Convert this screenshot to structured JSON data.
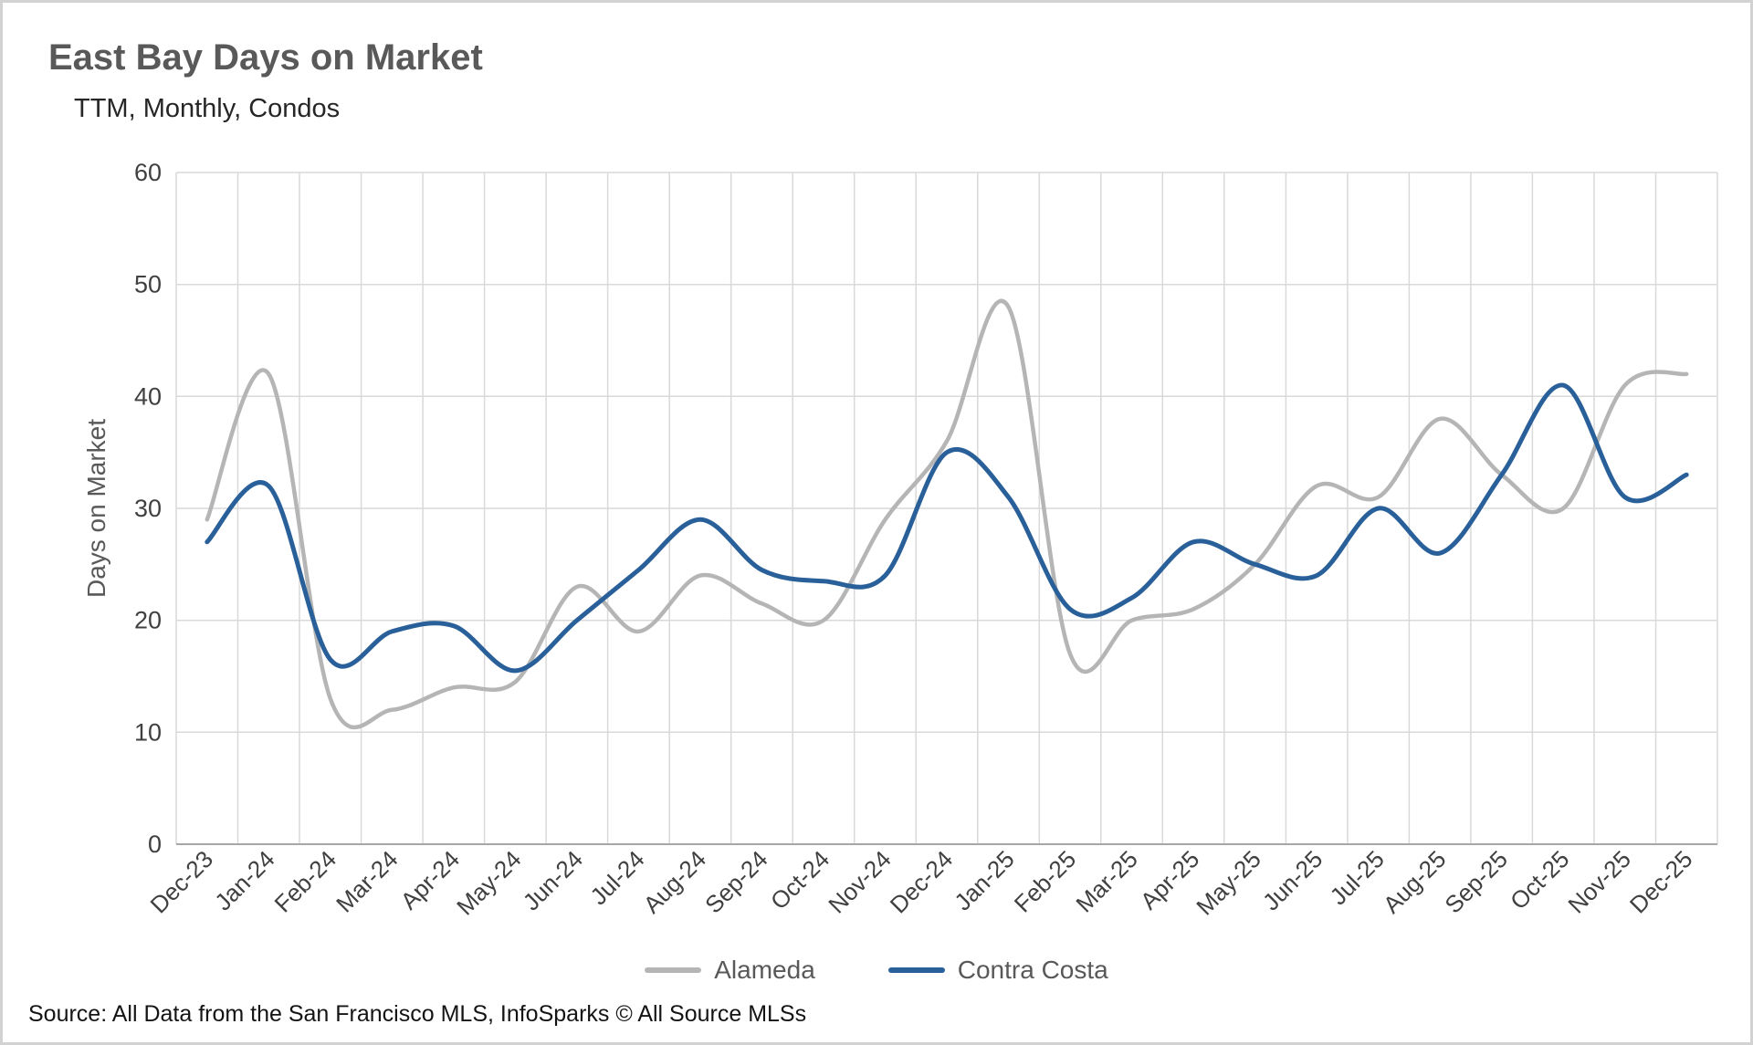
{
  "header": {
    "title": "East Bay Days on Market",
    "subtitle": "TTM, Monthly, Condos"
  },
  "chart_data": {
    "type": "line",
    "title": "East Bay Days on Market",
    "subtitle": "TTM, Monthly, Condos",
    "xlabel": "",
    "ylabel": "Days on Market",
    "ylim": [
      0,
      60
    ],
    "ytick_step": 10,
    "grid": true,
    "legend_position": "bottom",
    "line_style": "smooth",
    "categories": [
      "Dec-23",
      "Jan-24",
      "Feb-24",
      "Mar-24",
      "Apr-24",
      "May-24",
      "Jun-24",
      "Jul-24",
      "Aug-24",
      "Sep-24",
      "Oct-24",
      "Nov-24",
      "Dec-24",
      "Jan-25",
      "Feb-25",
      "Mar-25",
      "Apr-25",
      "May-25",
      "Jun-25",
      "Jul-25",
      "Aug-25",
      "Sep-25",
      "Oct-25",
      "Nov-25",
      "Dec-25"
    ],
    "series": [
      {
        "name": "Alameda",
        "color": "#b5b5b5",
        "stroke_width": 4.5,
        "values": [
          29,
          42,
          13,
          12,
          14,
          14.5,
          23,
          19,
          24,
          21.5,
          20,
          29,
          36,
          48,
          17,
          20,
          21,
          25,
          32,
          31,
          38,
          33,
          30,
          41,
          42
        ]
      },
      {
        "name": "Contra Costa",
        "color": "#2a6099",
        "stroke_width": 5,
        "values": [
          27,
          32,
          16.5,
          19,
          19.5,
          15.5,
          20,
          24.5,
          29,
          24.5,
          23.5,
          24,
          35,
          31,
          21,
          22,
          27,
          25,
          24,
          30,
          26,
          33,
          41,
          31,
          33
        ]
      }
    ],
    "colors": {
      "gridline": "#d9d9d9",
      "axis_line": "#a6a6a6",
      "tick_label": "#404040",
      "axis_title": "#595959"
    }
  },
  "footer": {
    "source": "Source: All Data from the San Francisco MLS, InfoSparks © All Source MLSs"
  }
}
